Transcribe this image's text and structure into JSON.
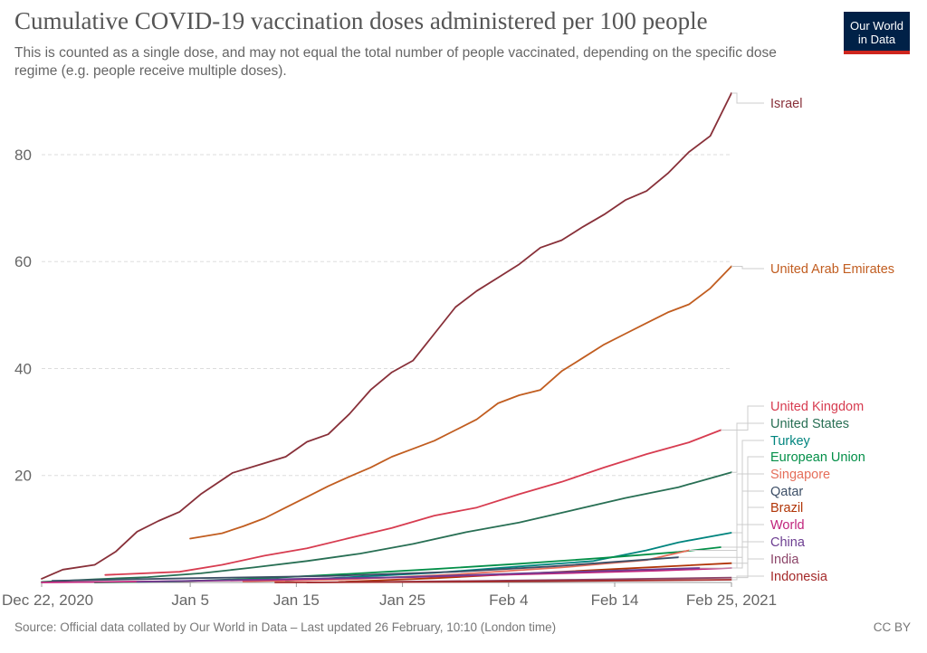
{
  "header": {
    "title": "Cumulative COVID-19 vaccination doses administered per 100 people",
    "subtitle": "This is counted as a single dose, and may not equal the total number of people vaccinated, depending on the specific dose regime (e.g. people receive multiple doses).",
    "logo_line1": "Our World",
    "logo_line2": "in Data"
  },
  "footer": {
    "source": "Source: Official data collated by Our World in Data – Last updated 26 February, 10:10 (London time)",
    "license": "CC BY"
  },
  "chart_data": {
    "type": "line",
    "x_start": "2020-12-22",
    "x_end": "2021-02-25",
    "xticks": [
      {
        "date": "2020-12-22",
        "label": "Dec 22, 2020"
      },
      {
        "date": "2021-01-05",
        "label": "Jan 5"
      },
      {
        "date": "2021-01-15",
        "label": "Jan 15"
      },
      {
        "date": "2021-01-25",
        "label": "Jan 25"
      },
      {
        "date": "2021-02-04",
        "label": "Feb 4"
      },
      {
        "date": "2021-02-14",
        "label": "Feb 14"
      },
      {
        "date": "2021-02-25",
        "label": "Feb 25, 2021"
      }
    ],
    "yticks": [
      20,
      40,
      60,
      80
    ],
    "ylim": [
      0,
      92
    ],
    "grid": "horizontal dashed",
    "legend": "right, labels at line ends",
    "series": [
      {
        "name": "Israel",
        "color": "#883039",
        "points": [
          [
            "2020-12-22",
            0.7
          ],
          [
            "2020-12-24",
            2.4
          ],
          [
            "2020-12-27",
            3.3
          ],
          [
            "2020-12-29",
            5.8
          ],
          [
            "2020-12-31",
            9.5
          ],
          [
            "2021-01-02",
            11.5
          ],
          [
            "2021-01-04",
            13.2
          ],
          [
            "2021-01-06",
            16.5
          ],
          [
            "2021-01-09",
            20.5
          ],
          [
            "2021-01-12",
            22.3
          ],
          [
            "2021-01-14",
            23.5
          ],
          [
            "2021-01-16",
            26.3
          ],
          [
            "2021-01-18",
            27.7
          ],
          [
            "2021-01-20",
            31.5
          ],
          [
            "2021-01-22",
            36.0
          ],
          [
            "2021-01-24",
            39.3
          ],
          [
            "2021-01-26",
            41.5
          ],
          [
            "2021-01-28",
            46.5
          ],
          [
            "2021-01-30",
            51.5
          ],
          [
            "2021-02-01",
            54.5
          ],
          [
            "2021-02-03",
            57.0
          ],
          [
            "2021-02-05",
            59.5
          ],
          [
            "2021-02-07",
            62.6
          ],
          [
            "2021-02-09",
            64.0
          ],
          [
            "2021-02-11",
            66.5
          ],
          [
            "2021-02-13",
            68.8
          ],
          [
            "2021-02-15",
            71.5
          ],
          [
            "2021-02-17",
            73.2
          ],
          [
            "2021-02-19",
            76.5
          ],
          [
            "2021-02-21",
            80.5
          ],
          [
            "2021-02-23",
            83.5
          ],
          [
            "2021-02-25",
            91.5
          ]
        ]
      },
      {
        "name": "United Arab Emirates",
        "color": "#c15d20",
        "points": [
          [
            "2021-01-05",
            8.2
          ],
          [
            "2021-01-08",
            9.2
          ],
          [
            "2021-01-10",
            10.5
          ],
          [
            "2021-01-12",
            12.0
          ],
          [
            "2021-01-14",
            14.0
          ],
          [
            "2021-01-16",
            16.0
          ],
          [
            "2021-01-18",
            18.0
          ],
          [
            "2021-01-20",
            19.8
          ],
          [
            "2021-01-22",
            21.5
          ],
          [
            "2021-01-24",
            23.5
          ],
          [
            "2021-01-26",
            25.0
          ],
          [
            "2021-01-28",
            26.5
          ],
          [
            "2021-01-30",
            28.5
          ],
          [
            "2021-02-01",
            30.5
          ],
          [
            "2021-02-03",
            33.5
          ],
          [
            "2021-02-05",
            35.0
          ],
          [
            "2021-02-07",
            36.0
          ],
          [
            "2021-02-09",
            39.5
          ],
          [
            "2021-02-11",
            42.0
          ],
          [
            "2021-02-13",
            44.5
          ],
          [
            "2021-02-15",
            46.5
          ],
          [
            "2021-02-17",
            48.5
          ],
          [
            "2021-02-19",
            50.5
          ],
          [
            "2021-02-21",
            52.0
          ],
          [
            "2021-02-23",
            55.0
          ],
          [
            "2021-02-25",
            59.1
          ]
        ]
      },
      {
        "name": "United Kingdom",
        "color": "#d73c50",
        "points": [
          [
            "2020-12-28",
            1.4
          ],
          [
            "2021-01-04",
            2.0
          ],
          [
            "2021-01-08",
            3.3
          ],
          [
            "2021-01-12",
            5.0
          ],
          [
            "2021-01-16",
            6.4
          ],
          [
            "2021-01-20",
            8.3
          ],
          [
            "2021-01-24",
            10.2
          ],
          [
            "2021-01-28",
            12.5
          ],
          [
            "2021-02-01",
            14.0
          ],
          [
            "2021-02-05",
            16.5
          ],
          [
            "2021-02-09",
            18.8
          ],
          [
            "2021-02-13",
            21.5
          ],
          [
            "2021-02-17",
            24.0
          ],
          [
            "2021-02-21",
            26.2
          ],
          [
            "2021-02-24",
            28.5
          ]
        ]
      },
      {
        "name": "United States",
        "color": "#286f54",
        "points": [
          [
            "2020-12-22",
            0.1
          ],
          [
            "2020-12-27",
            0.6
          ],
          [
            "2021-01-01",
            1.0
          ],
          [
            "2021-01-06",
            1.7
          ],
          [
            "2021-01-11",
            2.8
          ],
          [
            "2021-01-16",
            4.0
          ],
          [
            "2021-01-21",
            5.4
          ],
          [
            "2021-01-26",
            7.2
          ],
          [
            "2021-01-31",
            9.4
          ],
          [
            "2021-02-05",
            11.2
          ],
          [
            "2021-02-10",
            13.5
          ],
          [
            "2021-02-15",
            15.8
          ],
          [
            "2021-02-20",
            17.8
          ],
          [
            "2021-02-25",
            20.6
          ]
        ]
      },
      {
        "name": "Turkey",
        "color": "#00847e",
        "points": [
          [
            "2021-01-14",
            0.3
          ],
          [
            "2021-01-20",
            1.0
          ],
          [
            "2021-01-28",
            1.8
          ],
          [
            "2021-02-05",
            3.0
          ],
          [
            "2021-02-12",
            4.0
          ],
          [
            "2021-02-17",
            6.0
          ],
          [
            "2021-02-20",
            7.5
          ],
          [
            "2021-02-25",
            9.3
          ]
        ]
      },
      {
        "name": "European Union",
        "color": "#038f48",
        "points": [
          [
            "2020-12-27",
            0.0
          ],
          [
            "2021-01-04",
            0.2
          ],
          [
            "2021-01-12",
            0.8
          ],
          [
            "2021-01-20",
            1.6
          ],
          [
            "2021-01-28",
            2.5
          ],
          [
            "2021-02-05",
            3.5
          ],
          [
            "2021-02-13",
            4.6
          ],
          [
            "2021-02-20",
            5.7
          ],
          [
            "2021-02-24",
            6.6
          ]
        ]
      },
      {
        "name": "Singapore",
        "color": "#e56e5a",
        "points": [
          [
            "2021-01-10",
            0.2
          ],
          [
            "2021-01-20",
            0.6
          ],
          [
            "2021-01-30",
            1.5
          ],
          [
            "2021-02-09",
            2.8
          ],
          [
            "2021-02-17",
            4.2
          ],
          [
            "2021-02-21",
            6.0
          ]
        ]
      },
      {
        "name": "Qatar",
        "color": "#3c4e66",
        "points": [
          [
            "2020-12-23",
            0.3
          ],
          [
            "2021-01-05",
            0.8
          ],
          [
            "2021-01-18",
            1.2
          ],
          [
            "2021-01-30",
            2.0
          ],
          [
            "2021-02-08",
            3.0
          ],
          [
            "2021-02-20",
            4.7
          ]
        ]
      },
      {
        "name": "Brazil",
        "color": "#b13507",
        "points": [
          [
            "2021-01-19",
            0.1
          ],
          [
            "2021-01-28",
            0.8
          ],
          [
            "2021-02-05",
            1.6
          ],
          [
            "2021-02-14",
            2.5
          ],
          [
            "2021-02-25",
            3.6
          ]
        ]
      },
      {
        "name": "World",
        "color": "#c0247c",
        "points": [
          [
            "2020-12-22",
            0.0
          ],
          [
            "2021-01-02",
            0.2
          ],
          [
            "2021-01-14",
            0.5
          ],
          [
            "2021-01-26",
            1.0
          ],
          [
            "2021-02-07",
            1.6
          ],
          [
            "2021-02-18",
            2.2
          ],
          [
            "2021-02-25",
            2.7
          ]
        ]
      },
      {
        "name": "China",
        "color": "#6d3e91",
        "points": [
          [
            "2020-12-31",
            0.1
          ],
          [
            "2021-01-10",
            0.5
          ],
          [
            "2021-01-25",
            1.0
          ],
          [
            "2021-02-10",
            2.0
          ],
          [
            "2021-02-22",
            2.7
          ]
        ]
      },
      {
        "name": "India",
        "color": "#8c4569",
        "points": [
          [
            "2021-01-16",
            0.0
          ],
          [
            "2021-01-28",
            0.2
          ],
          [
            "2021-02-10",
            0.5
          ],
          [
            "2021-02-25",
            0.9
          ]
        ]
      },
      {
        "name": "Indonesia",
        "color": "#a52a2a",
        "points": [
          [
            "2021-01-13",
            0.0
          ],
          [
            "2021-01-28",
            0.1
          ],
          [
            "2021-02-12",
            0.3
          ],
          [
            "2021-02-25",
            0.5
          ]
        ]
      }
    ]
  }
}
